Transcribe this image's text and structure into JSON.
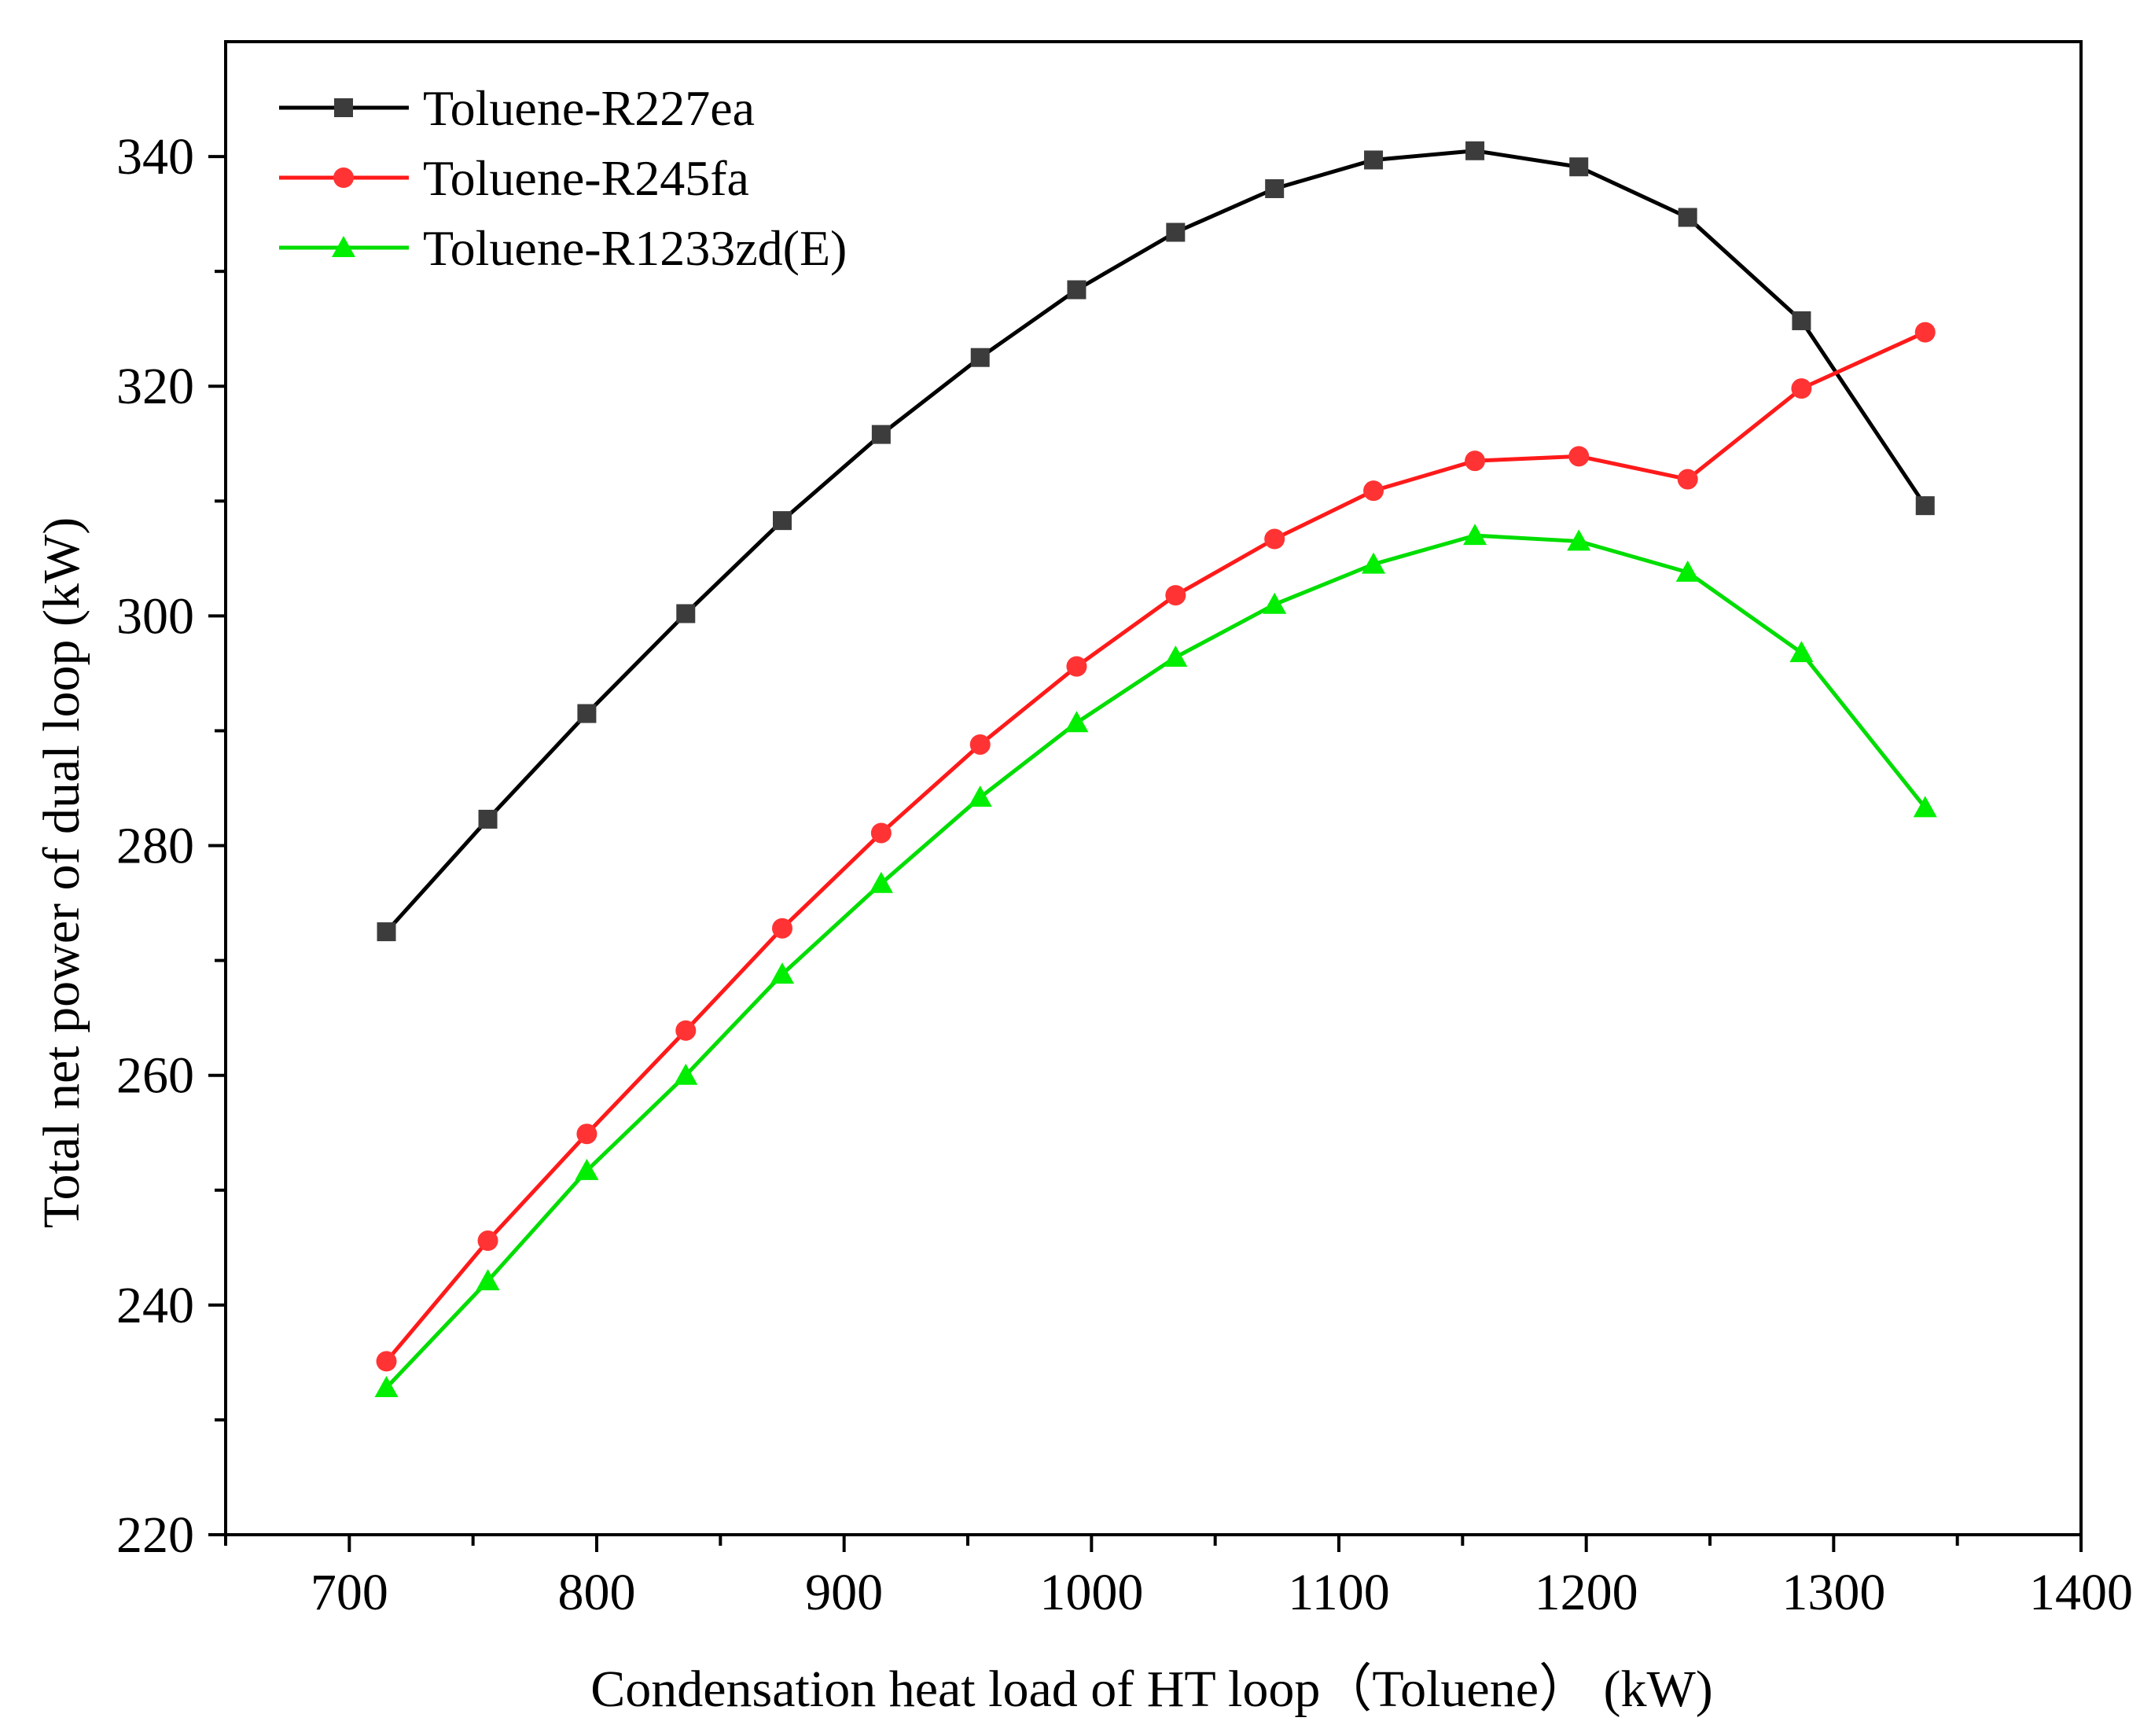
{
  "chart_data": {
    "type": "line",
    "title": "",
    "xlabel": "Condensation heat load of HT loop（Toluene） (kW)",
    "ylabel": "Total net power of dual loop (kW)",
    "xlim": [
      650,
      1400
    ],
    "ylim": [
      220,
      350
    ],
    "xticks": [
      700,
      800,
      900,
      1000,
      1100,
      1200,
      1300,
      1400
    ],
    "yticks": [
      220,
      240,
      260,
      280,
      300,
      320,
      340
    ],
    "legend_position": "top-left",
    "series": [
      {
        "name": "Toluene-R227ea",
        "color": "#000000",
        "marker_color": "#3c3c3c",
        "marker": "square",
        "x": [
          715,
          756,
          796,
          836,
          875,
          915,
          955,
          994,
          1034,
          1074,
          1114,
          1155,
          1197,
          1241,
          1287,
          1337
        ],
        "y": [
          272.5,
          282.3,
          291.5,
          300.2,
          308.3,
          315.8,
          322.5,
          328.4,
          333.4,
          337.2,
          339.7,
          340.5,
          339.1,
          334.7,
          325.7,
          309.6
        ]
      },
      {
        "name": "Toluene-R245fa",
        "color": "#ff1a1a",
        "marker_color": "#ff3333",
        "marker": "circle",
        "x": [
          715,
          756,
          796,
          836,
          875,
          915,
          955,
          994,
          1034,
          1074,
          1114,
          1155,
          1197,
          1241,
          1287,
          1337
        ],
        "y": [
          235.1,
          245.6,
          254.9,
          263.9,
          272.8,
          281.1,
          288.8,
          295.6,
          301.8,
          306.7,
          310.9,
          313.5,
          313.9,
          311.9,
          319.8,
          324.7
        ]
      },
      {
        "name": "Toluene-R1233zd(E)",
        "color": "#00dd00",
        "marker_color": "#00ee00",
        "marker": "triangle",
        "x": [
          715,
          756,
          796,
          836,
          875,
          915,
          955,
          994,
          1034,
          1074,
          1114,
          1155,
          1197,
          1241,
          1287,
          1337
        ],
        "y": [
          232.8,
          242.1,
          251.7,
          260.0,
          268.8,
          276.7,
          284.2,
          290.7,
          296.4,
          301.0,
          304.5,
          307.0,
          306.5,
          303.8,
          296.8,
          283.3
        ]
      }
    ]
  }
}
